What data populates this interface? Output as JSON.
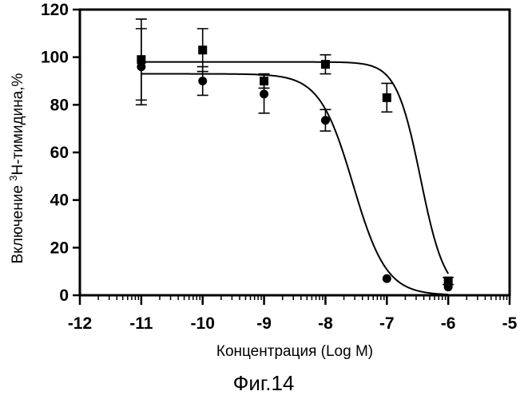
{
  "chart_data": {
    "type": "scatter",
    "title": "",
    "xlabel": "Концентрация (Log M)",
    "ylabel_prefix": "Включение ",
    "ylabel_sup": "3",
    "ylabel_suffix": "Н-тимидина,%",
    "caption": "Фиг.14",
    "xlim": [
      -12,
      -5
    ],
    "ylim": [
      0,
      120
    ],
    "x_ticks": [
      -12,
      -11,
      -10,
      -9,
      -8,
      -7,
      -6,
      -5
    ],
    "x_tick_labels": [
      "-12",
      "-11",
      "-10",
      "-9",
      "-8",
      "-7",
      "-6",
      "-5"
    ],
    "y_ticks": [
      0,
      20,
      40,
      60,
      80,
      100,
      120
    ],
    "y_tick_labels": [
      "0",
      "20",
      "40",
      "60",
      "80",
      "100",
      "120"
    ],
    "x_minor_log_ticks": true,
    "grid": false,
    "series": [
      {
        "marker": "square",
        "x": [
          -11,
          -10,
          -9,
          -8,
          -7,
          -6
        ],
        "y": [
          99,
          103,
          90,
          97,
          83,
          6
        ],
        "err": [
          17,
          9,
          3,
          4,
          6,
          1.5
        ],
        "fit": {
          "top": 98,
          "bottom": 0,
          "log_ic50": -6.45,
          "hill": -2.2
        }
      },
      {
        "marker": "circle",
        "x": [
          -11,
          -10,
          -9,
          -8,
          -7,
          -6
        ],
        "y": [
          96,
          90,
          84.5,
          73.5,
          7,
          3.5
        ],
        "err": [
          16,
          6,
          8,
          4.5,
          0,
          0
        ],
        "fit": {
          "top": 93,
          "bottom": 0,
          "log_ic50": -7.55,
          "hill": -1.6
        }
      }
    ]
  }
}
